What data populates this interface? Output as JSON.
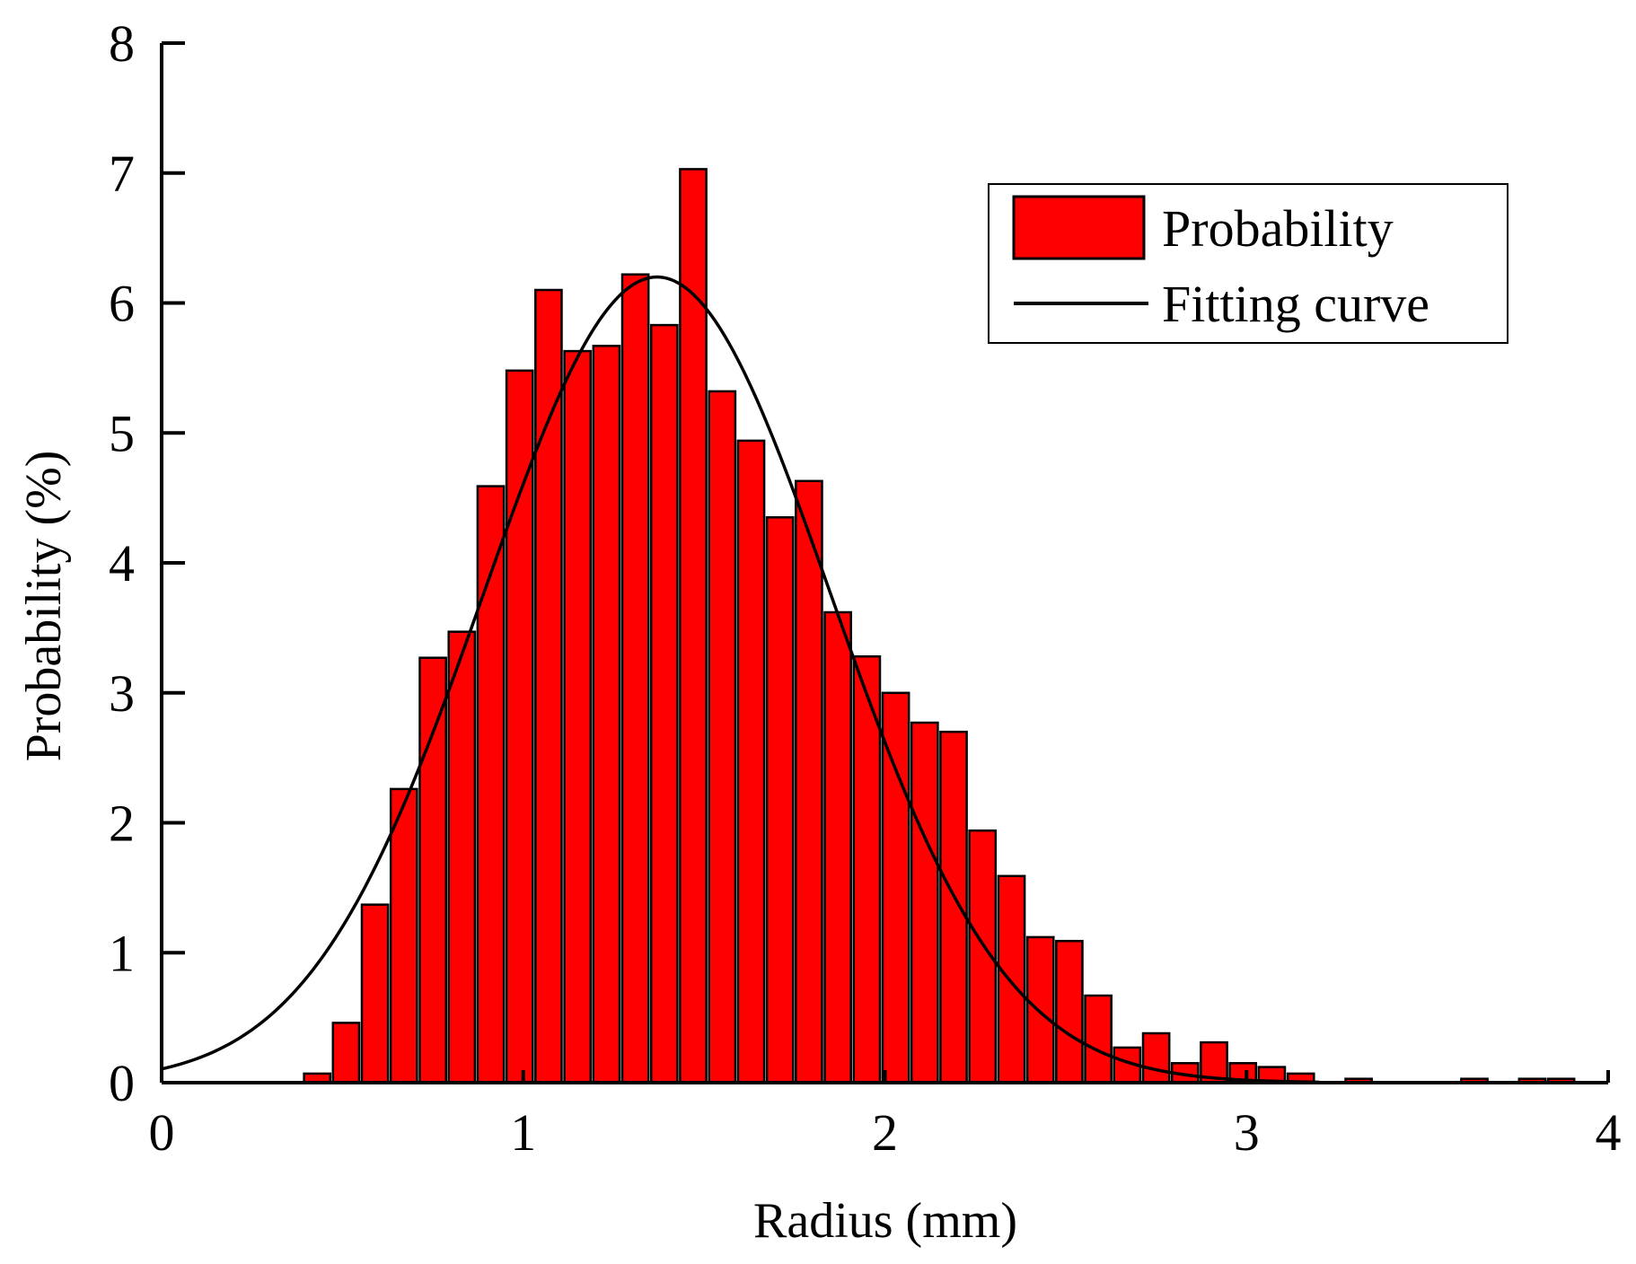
{
  "chart_data": {
    "type": "bar",
    "xlabel": "Radius (mm)",
    "ylabel": "Probability (%)",
    "xlim": [
      0,
      4
    ],
    "ylim": [
      0,
      8
    ],
    "xticks": [
      "0",
      "1",
      "2",
      "3",
      "4"
    ],
    "yticks": [
      "0",
      "1",
      "2",
      "3",
      "4",
      "5",
      "6",
      "7",
      "8"
    ],
    "bin_width": 0.08,
    "grid": false,
    "legend_position": "top-right",
    "series": [
      {
        "name": "Probability",
        "type": "bar",
        "color": "#ff0000",
        "x": [
          0.43,
          0.51,
          0.59,
          0.67,
          0.75,
          0.83,
          0.91,
          0.99,
          1.07,
          1.15,
          1.23,
          1.31,
          1.39,
          1.47,
          1.55,
          1.63,
          1.71,
          1.79,
          1.87,
          1.95,
          2.03,
          2.11,
          2.19,
          2.27,
          2.35,
          2.43,
          2.51,
          2.59,
          2.67,
          2.75,
          2.83,
          2.91,
          2.99,
          3.07,
          3.15,
          3.31,
          3.63,
          3.79,
          3.87
        ],
        "values": [
          0.07,
          0.46,
          1.37,
          2.26,
          3.27,
          3.47,
          4.59,
          5.48,
          6.1,
          5.63,
          5.67,
          6.22,
          5.83,
          7.03,
          5.32,
          4.94,
          4.35,
          4.63,
          3.62,
          3.28,
          3.0,
          2.77,
          2.7,
          1.94,
          1.59,
          1.12,
          1.09,
          0.67,
          0.27,
          0.38,
          0.15,
          0.31,
          0.15,
          0.12,
          0.07,
          0.03,
          0.03,
          0.03,
          0.03
        ]
      },
      {
        "name": "Fitting curve",
        "type": "line",
        "color": "#000000",
        "peak_y": 6.2,
        "peak_x": 1.37,
        "sigma": 0.48,
        "x_range": [
          0,
          3.2
        ]
      }
    ]
  }
}
